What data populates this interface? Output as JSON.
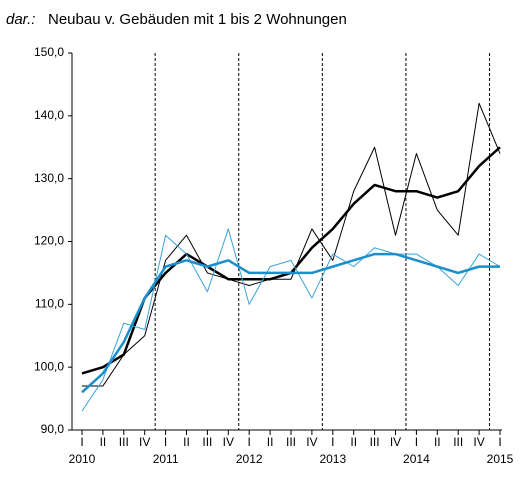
{
  "chart_data": {
    "type": "line",
    "title_prefix": "dar.:",
    "title": "Neubau v. Gebäuden mit 1 bis 2 Wohnungen",
    "categories": [
      "I",
      "II",
      "III",
      "IV",
      "I",
      "II",
      "III",
      "IV",
      "I",
      "II",
      "III",
      "IV",
      "I",
      "II",
      "III",
      "IV",
      "I",
      "II",
      "III",
      "IV",
      "I"
    ],
    "years": [
      "2010",
      "2011",
      "2012",
      "2013",
      "2014",
      "2015"
    ],
    "series": [
      {
        "color": "#000000",
        "width": 1,
        "values": [
          97,
          97,
          102,
          105,
          117,
          121,
          115,
          114,
          113,
          114,
          114,
          122,
          117,
          128,
          135,
          121,
          134,
          125,
          121,
          142,
          134
        ]
      },
      {
        "color": "#000000",
        "width": 2.5,
        "values": [
          99,
          100,
          102,
          111,
          115,
          118,
          116,
          114,
          114,
          114,
          115,
          119,
          122,
          126,
          129,
          128,
          128,
          127,
          128,
          132,
          135
        ]
      },
      {
        "color": "#3aa3d8",
        "width": 1,
        "values": [
          93,
          98,
          107,
          106,
          121,
          118,
          112,
          122,
          110,
          116,
          117,
          111,
          118,
          116,
          119,
          118,
          118,
          116,
          113,
          118,
          116
        ]
      },
      {
        "color": "#1a8fcc",
        "width": 2.5,
        "values": [
          96,
          99,
          104,
          111,
          116,
          117,
          116,
          117,
          115,
          115,
          115,
          115,
          116,
          117,
          118,
          118,
          117,
          116,
          115,
          116,
          116
        ]
      }
    ],
    "ylim": [
      90,
      150
    ],
    "yticks": [
      {
        "value": 90,
        "label": "90,0"
      },
      {
        "value": 100,
        "label": "100,0"
      },
      {
        "value": 110,
        "label": "110,0"
      },
      {
        "value": 120,
        "label": "120,0"
      },
      {
        "value": 130,
        "label": "130,0"
      },
      {
        "value": 140,
        "label": "140,0"
      },
      {
        "value": 150,
        "label": "150,0"
      }
    ]
  }
}
